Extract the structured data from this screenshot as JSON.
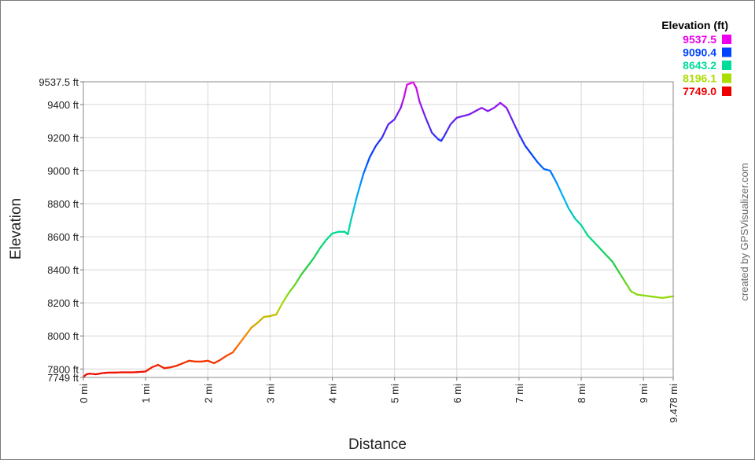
{
  "chart_data": {
    "type": "line",
    "xlabel": "Distance",
    "ylabel": "Elevation",
    "xlim": [
      0,
      9.478
    ],
    "ylim": [
      7749,
      9537.5
    ],
    "grid": true,
    "x_ticks": [
      {
        "value": 0,
        "label": "0 mi"
      },
      {
        "value": 1,
        "label": "1 mi"
      },
      {
        "value": 2,
        "label": "2 mi"
      },
      {
        "value": 3,
        "label": "3 mi"
      },
      {
        "value": 4,
        "label": "4 mi"
      },
      {
        "value": 5,
        "label": "5 mi"
      },
      {
        "value": 6,
        "label": "6 mi"
      },
      {
        "value": 7,
        "label": "7 mi"
      },
      {
        "value": 8,
        "label": "8 mi"
      },
      {
        "value": 9,
        "label": "9 mi"
      },
      {
        "value": 9.478,
        "label": "9.478 mi"
      }
    ],
    "y_ticks": [
      {
        "value": 7749,
        "label": "7749 ft"
      },
      {
        "value": 7800,
        "label": "7800 ft"
      },
      {
        "value": 8000,
        "label": "8000 ft"
      },
      {
        "value": 8200,
        "label": "8200 ft"
      },
      {
        "value": 8400,
        "label": "8400 ft"
      },
      {
        "value": 8600,
        "label": "8600 ft"
      },
      {
        "value": 8800,
        "label": "8800 ft"
      },
      {
        "value": 9000,
        "label": "9000 ft"
      },
      {
        "value": 9200,
        "label": "9200 ft"
      },
      {
        "value": 9400,
        "label": "9400 ft"
      },
      {
        "value": 9537.5,
        "label": "9537.5 ft"
      }
    ],
    "legend": {
      "title": "Elevation (ft)",
      "placement": "top-right",
      "entries": [
        {
          "label": "9537.5",
          "color": "#ee00ee"
        },
        {
          "label": "9090.4",
          "color": "#0044ff"
        },
        {
          "label": "8643.2",
          "color": "#00dd99"
        },
        {
          "label": "8196.1",
          "color": "#aadd00"
        },
        {
          "label": "7749.0",
          "color": "#ee0000"
        }
      ]
    },
    "colorscale": [
      {
        "value": 7749.0,
        "color": "#ee0000"
      },
      {
        "value": 7970.0,
        "color": "#ff7700"
      },
      {
        "value": 8196.1,
        "color": "#aadd00"
      },
      {
        "value": 8420.0,
        "color": "#22cc44"
      },
      {
        "value": 8643.2,
        "color": "#00dd99"
      },
      {
        "value": 8870.0,
        "color": "#00aaff"
      },
      {
        "value": 9090.4,
        "color": "#0044ff"
      },
      {
        "value": 9310.0,
        "color": "#6622ee"
      },
      {
        "value": 9537.5,
        "color": "#ee00ee"
      }
    ],
    "series": [
      {
        "x": [
          0,
          0.05,
          0.1,
          0.2,
          0.3,
          0.4,
          0.5,
          0.6,
          0.7,
          0.8,
          0.9,
          1.0,
          1.1,
          1.2,
          1.3,
          1.4,
          1.5,
          1.6,
          1.7,
          1.8,
          1.9,
          2.0,
          2.1,
          2.2,
          2.3,
          2.4,
          2.5,
          2.6,
          2.7,
          2.8,
          2.9,
          3.0,
          3.1,
          3.2,
          3.3,
          3.4,
          3.5,
          3.6,
          3.7,
          3.8,
          3.9,
          4.0,
          4.1,
          4.2,
          4.25,
          4.3,
          4.4,
          4.5,
          4.6,
          4.7,
          4.8,
          4.9,
          5.0,
          5.1,
          5.15,
          5.2,
          5.3,
          5.35,
          5.4,
          5.5,
          5.6,
          5.7,
          5.75,
          5.8,
          5.9,
          6.0,
          6.1,
          6.2,
          6.3,
          6.4,
          6.5,
          6.6,
          6.7,
          6.8,
          6.9,
          7.0,
          7.1,
          7.2,
          7.3,
          7.4,
          7.5,
          7.6,
          7.7,
          7.8,
          7.9,
          8.0,
          8.1,
          8.2,
          8.3,
          8.4,
          8.5,
          8.6,
          8.7,
          8.8,
          8.9,
          9.0,
          9.1,
          9.2,
          9.3,
          9.4,
          9.478
        ],
        "values": [
          7752,
          7768,
          7772,
          7768,
          7775,
          7778,
          7778,
          7780,
          7780,
          7780,
          7782,
          7785,
          7810,
          7825,
          7805,
          7810,
          7820,
          7835,
          7850,
          7845,
          7845,
          7850,
          7835,
          7855,
          7880,
          7900,
          7950,
          8000,
          8050,
          8080,
          8115,
          8120,
          8130,
          8200,
          8260,
          8310,
          8370,
          8420,
          8470,
          8530,
          8580,
          8620,
          8630,
          8630,
          8615,
          8700,
          8850,
          8980,
          9080,
          9150,
          9200,
          9280,
          9310,
          9380,
          9440,
          9520,
          9535,
          9500,
          9420,
          9320,
          9230,
          9190,
          9180,
          9210,
          9280,
          9320,
          9330,
          9340,
          9360,
          9380,
          9360,
          9380,
          9410,
          9380,
          9300,
          9220,
          9150,
          9100,
          9050,
          9010,
          9000,
          8930,
          8850,
          8770,
          8710,
          8670,
          8610,
          8570,
          8530,
          8490,
          8450,
          8390,
          8330,
          8270,
          8250,
          8245,
          8240,
          8235,
          8230,
          8235,
          8240
        ]
      }
    ]
  },
  "watermark": "created by GPSVisualizer.com"
}
